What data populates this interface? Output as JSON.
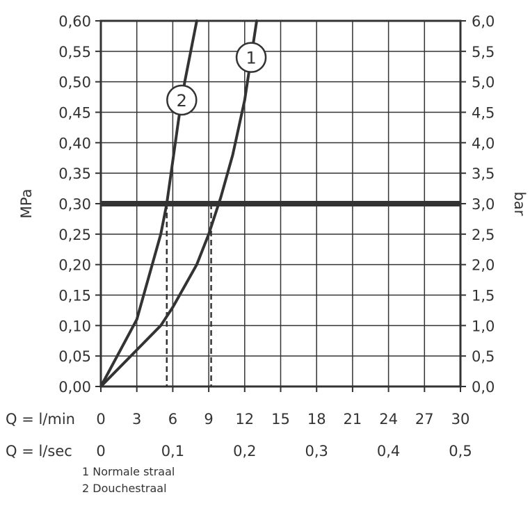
{
  "chart_data": {
    "type": "line",
    "ylabel_left": "MPa",
    "ylabel_right": "bar",
    "y_left_ticks": [
      "0,00",
      "0,05",
      "0,10",
      "0,15",
      "0,20",
      "0,25",
      "0,30",
      "0,35",
      "0,40",
      "0,45",
      "0,50",
      "0,55",
      "0,60"
    ],
    "y_right_ticks": [
      "0,0",
      "0,5",
      "1,0",
      "1,5",
      "2,0",
      "2,5",
      "3,0",
      "3,5",
      "4,0",
      "4,5",
      "5,0",
      "5,5",
      "6,0"
    ],
    "ylim": [
      0,
      0.6
    ],
    "xlim": [
      0,
      30
    ],
    "x_lpm_label": "Q = l/min",
    "x_lpm_ticks": [
      "0",
      "3",
      "6",
      "9",
      "12",
      "15",
      "18",
      "21",
      "24",
      "27",
      "30"
    ],
    "x_lps_label": "Q = l/sec",
    "x_lps_ticks": [
      "0",
      "0,1",
      "0,2",
      "0,3",
      "0,4",
      "0,5"
    ],
    "grid": true,
    "reference_line": {
      "y": 0.3
    },
    "series": [
      {
        "name": "1",
        "x": [
          0,
          3,
          5,
          6,
          8,
          9,
          10,
          11,
          12,
          13
        ],
        "y": [
          0,
          0.06,
          0.1,
          0.13,
          0.2,
          0.25,
          0.31,
          0.38,
          0.47,
          0.6
        ]
      },
      {
        "name": "2",
        "x": [
          0,
          3,
          4,
          5,
          5.5,
          6,
          6.5,
          7,
          8
        ],
        "y": [
          0,
          0.11,
          0.18,
          0.25,
          0.3,
          0.37,
          0.44,
          0.5,
          0.6
        ]
      }
    ],
    "dashed_markers": [
      5.5,
      9.2
    ],
    "color": "#333333"
  },
  "legend": {
    "item1": "1 Normale straal",
    "item2": "2 Douchestraal"
  }
}
